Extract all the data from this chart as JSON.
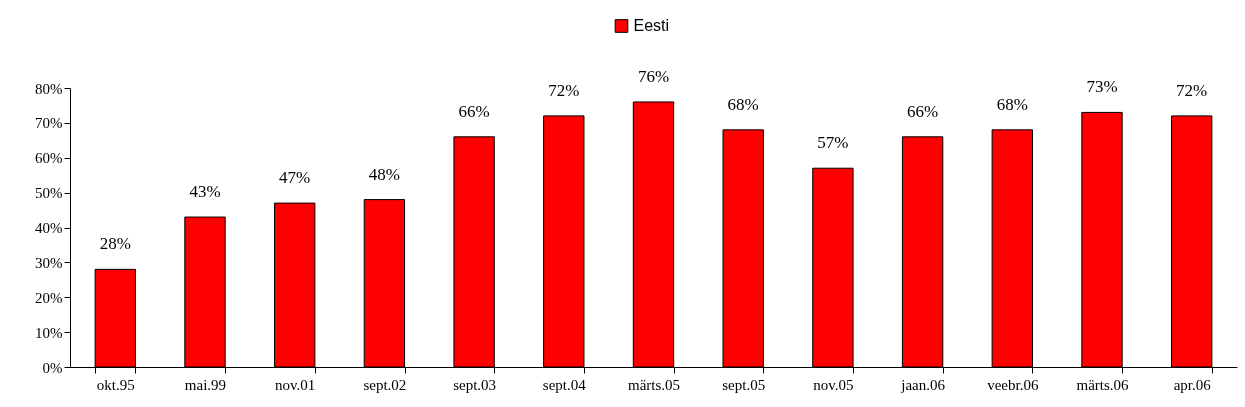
{
  "chart_data": {
    "type": "bar",
    "categories": [
      "okt.95",
      "mai.99",
      "nov.01",
      "sept.02",
      "sept.03",
      "sept.04",
      "märts.05",
      "sept.05",
      "nov.05",
      "jaan.06",
      "veebr.06",
      "märts.06",
      "apr.06"
    ],
    "series": [
      {
        "name": "Eesti",
        "color": "#ff0000",
        "values": [
          28,
          43,
          47,
          48,
          66,
          72,
          76,
          68,
          57,
          66,
          68,
          73,
          72
        ],
        "value_labels": [
          "28%",
          "43%",
          "47%",
          "48%",
          "66%",
          "72%",
          "76%",
          "68%",
          "57%",
          "66%",
          "68%",
          "73%",
          "72%"
        ]
      }
    ],
    "ylim": [
      0,
      80
    ],
    "yticks": [
      {
        "value": 0,
        "label": "0%"
      },
      {
        "value": 10,
        "label": "10%"
      },
      {
        "value": 20,
        "label": "20%"
      },
      {
        "value": 30,
        "label": "30%"
      },
      {
        "value": 40,
        "label": "40%"
      },
      {
        "value": 50,
        "label": "50%"
      },
      {
        "value": 60,
        "label": "60%"
      },
      {
        "value": 70,
        "label": "70%"
      },
      {
        "value": 80,
        "label": "80%"
      }
    ],
    "grid": false,
    "legend": "top"
  }
}
